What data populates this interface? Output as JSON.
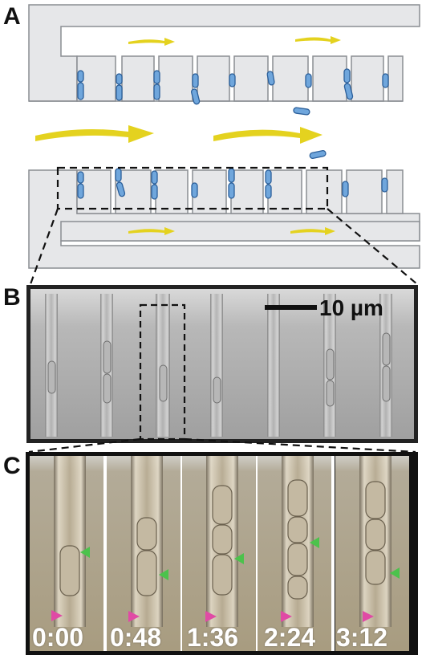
{
  "panels": {
    "a_label": "A",
    "b_label": "B",
    "c_label": "C"
  },
  "scale_bar": {
    "label": "10 µm"
  },
  "timepoints": [
    "0:00",
    "0:48",
    "1:36",
    "2:24",
    "3:12"
  ],
  "colors": {
    "channel_fill": "#e6e7e9",
    "channel_stroke": "#8a8d92",
    "cell_fill": "#6fa6dc",
    "cell_stroke": "#2b5f9a",
    "flow_arrow": "#e4d21f",
    "marker_green": "#4cc24c",
    "marker_magenta": "#e04aa5",
    "micrograph_gray": "#9a9a99",
    "micrograph_sepia": "#a69a82",
    "frame_border": "#222222"
  }
}
